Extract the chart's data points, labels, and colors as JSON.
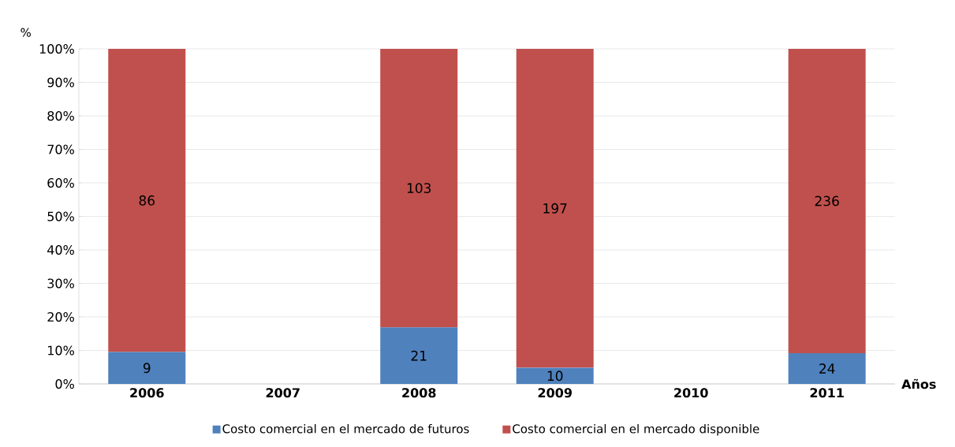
{
  "chart_data": {
    "type": "bar",
    "stacked": true,
    "ylabel": "%",
    "xlabel": "Años",
    "categories": [
      "2006",
      "2007",
      "2008",
      "2009",
      "2010",
      "2011"
    ],
    "series": [
      {
        "name": "Costo comercial en el mercado de futuros",
        "color": "#4f81bd",
        "values": [
          9.5,
          null,
          16.9,
          4.8,
          null,
          9.2
        ]
      },
      {
        "name": "Costo comercial en el mercado disponible",
        "color": "#c0504d",
        "values": [
          90.5,
          null,
          83.1,
          95.2,
          null,
          90.8
        ]
      }
    ],
    "annotations": [
      {
        "text": "9",
        "x": "2006",
        "y": 9.5
      },
      {
        "text": "21",
        "x": "2008",
        "y": 16.9
      },
      {
        "text": "10",
        "x": "2009",
        "y": 4.8
      },
      {
        "text": "24",
        "x": "2011",
        "y": 9.2
      },
      "86",
      "103",
      "197",
      "236"
    ],
    "ylim": [
      0,
      100
    ],
    "yticks": [
      {
        "value": 0,
        "label": "0%"
      },
      {
        "value": 10,
        "label": "10%"
      },
      {
        "value": 20,
        "label": "20%"
      },
      {
        "value": 30,
        "label": "30%"
      },
      {
        "value": 40,
        "label": "40%"
      },
      {
        "value": 50,
        "label": "50%"
      },
      {
        "value": 60,
        "label": "60%"
      },
      {
        "value": 70,
        "label": "70%"
      },
      {
        "value": 80,
        "label": "80%"
      },
      {
        "value": 90,
        "label": "90%"
      },
      {
        "value": 100,
        "label": "100%"
      }
    ],
    "grid": "y",
    "legend": "bottom"
  }
}
